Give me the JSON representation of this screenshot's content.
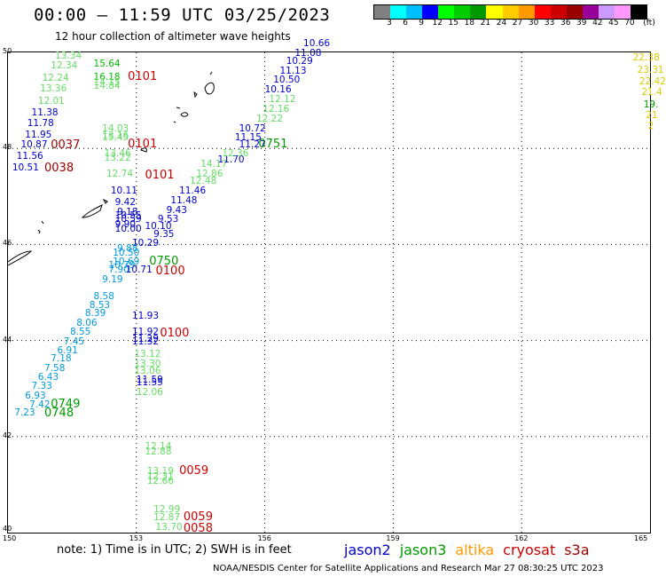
{
  "header": {
    "title": "00:00 — 11:59 UTC 03/25/2023",
    "subtitle": "12 hour collection of altimeter wave heights"
  },
  "colorbar": {
    "labels": [
      "3",
      "6",
      "9",
      "12",
      "15",
      "18",
      "21",
      "24",
      "27",
      "30",
      "33",
      "36",
      "39",
      "42",
      "45",
      "70",
      "(ft)"
    ],
    "colors": [
      "#808080",
      "#00ffff",
      "#00bfff",
      "#0000ff",
      "#00ff00",
      "#00cc00",
      "#009900",
      "#ffff00",
      "#ffcc00",
      "#ff9900",
      "#ff0000",
      "#cc0000",
      "#990000",
      "#990099",
      "#cc99ff",
      "#ff99ff",
      "#000000"
    ]
  },
  "axes": {
    "lat_labels": [
      "50",
      "48",
      "46",
      "44",
      "42",
      "40"
    ],
    "lon_labels": [
      "150",
      "153",
      "156",
      "159",
      "162",
      "165"
    ],
    "lat_range": [
      40,
      50
    ],
    "lon_range": [
      150,
      165
    ]
  },
  "annotations": [
    {
      "t": "13.34",
      "c": "#66dd66",
      "lon": 151.1,
      "lat": 49.9
    },
    {
      "t": "12.34",
      "c": "#66dd66",
      "lon": 151.0,
      "lat": 49.7
    },
    {
      "t": "15.64",
      "c": "#00bb00",
      "lon": 152.0,
      "lat": 49.75
    },
    {
      "t": "12.24",
      "c": "#66dd66",
      "lon": 150.8,
      "lat": 49.45
    },
    {
      "t": "16.18",
      "c": "#00bb00",
      "lon": 152.0,
      "lat": 49.47
    },
    {
      "t": "14.15",
      "c": "#66dd66",
      "lon": 152.0,
      "lat": 49.35
    },
    {
      "t": "14.84",
      "c": "#66dd66",
      "lon": 152.0,
      "lat": 49.27
    },
    {
      "t": "13.36",
      "c": "#66dd66",
      "lon": 150.75,
      "lat": 49.22
    },
    {
      "t": "12.01",
      "c": "#66dd66",
      "lon": 150.7,
      "lat": 48.97
    },
    {
      "t": "11.38",
      "c": "#0000cc",
      "lon": 150.55,
      "lat": 48.72
    },
    {
      "t": "11.78",
      "c": "#0000cc",
      "lon": 150.45,
      "lat": 48.5
    },
    {
      "t": "11.95",
      "c": "#0000cc",
      "lon": 150.4,
      "lat": 48.27
    },
    {
      "t": "14.03",
      "c": "#66dd66",
      "lon": 152.2,
      "lat": 48.4
    },
    {
      "t": "13.16",
      "c": "#66dd66",
      "lon": 152.2,
      "lat": 48.25
    },
    {
      "t": "15.45",
      "c": "#66dd66",
      "lon": 152.2,
      "lat": 48.2
    },
    {
      "t": "10.87",
      "c": "#0000cc",
      "lon": 150.3,
      "lat": 48.05
    },
    {
      "t": "11.56",
      "c": "#0000cc",
      "lon": 150.2,
      "lat": 47.82
    },
    {
      "t": "13.46",
      "c": "#66dd66",
      "lon": 152.25,
      "lat": 47.88
    },
    {
      "t": "13.22",
      "c": "#66dd66",
      "lon": 152.25,
      "lat": 47.78
    },
    {
      "t": "10.51",
      "c": "#0000cc",
      "lon": 150.1,
      "lat": 47.58
    },
    {
      "t": "12.74",
      "c": "#66dd66",
      "lon": 152.3,
      "lat": 47.45
    },
    {
      "t": "10.11",
      "c": "#0000cc",
      "lon": 152.4,
      "lat": 47.1
    },
    {
      "t": "9.42",
      "c": "#0000cc",
      "lon": 152.5,
      "lat": 46.85
    },
    {
      "t": "9.18",
      "c": "#0000cc",
      "lon": 152.55,
      "lat": 46.65
    },
    {
      "t": "10.55",
      "c": "#0000cc",
      "lon": 152.5,
      "lat": 46.58
    },
    {
      "t": "10.59",
      "c": "#0000cc",
      "lon": 152.5,
      "lat": 46.5
    },
    {
      "t": "9.90",
      "c": "#0000cc",
      "lon": 152.5,
      "lat": 46.4
    },
    {
      "t": "10.00",
      "c": "#0000cc",
      "lon": 152.5,
      "lat": 46.3
    },
    {
      "t": "10.10",
      "c": "#0000cc",
      "lon": 153.2,
      "lat": 46.35
    },
    {
      "t": "9.35",
      "c": "#0000cc",
      "lon": 153.4,
      "lat": 46.2
    },
    {
      "t": "10.29",
      "c": "#0000cc",
      "lon": 152.9,
      "lat": 46.0
    },
    {
      "t": "9.53",
      "c": "#0000cc",
      "lon": 153.5,
      "lat": 46.5
    },
    {
      "t": "9.43",
      "c": "#0000cc",
      "lon": 153.7,
      "lat": 46.7
    },
    {
      "t": "11.48",
      "c": "#0000cc",
      "lon": 153.8,
      "lat": 46.9
    },
    {
      "t": "11.46",
      "c": "#0000cc",
      "lon": 154.0,
      "lat": 47.1
    },
    {
      "t": "12.48",
      "c": "#66dd66",
      "lon": 154.25,
      "lat": 47.3
    },
    {
      "t": "12.86",
      "c": "#66dd66",
      "lon": 154.4,
      "lat": 47.45
    },
    {
      "t": "14.17",
      "c": "#66dd66",
      "lon": 154.5,
      "lat": 47.65
    },
    {
      "t": "11.70",
      "c": "#0000cc",
      "lon": 154.9,
      "lat": 47.75
    },
    {
      "t": "12.36",
      "c": "#66dd66",
      "lon": 155.0,
      "lat": 47.88
    },
    {
      "t": "11.27",
      "c": "#0000cc",
      "lon": 155.4,
      "lat": 48.05
    },
    {
      "t": "11.15",
      "c": "#0000cc",
      "lon": 155.3,
      "lat": 48.2
    },
    {
      "t": "10.72",
      "c": "#0000cc",
      "lon": 155.4,
      "lat": 48.4
    },
    {
      "t": "12.22",
      "c": "#66dd66",
      "lon": 155.8,
      "lat": 48.6
    },
    {
      "t": "12.16",
      "c": "#66dd66",
      "lon": 155.95,
      "lat": 48.8
    },
    {
      "t": "12.12",
      "c": "#66dd66",
      "lon": 156.1,
      "lat": 49.0
    },
    {
      "t": "10.16",
      "c": "#0000cc",
      "lon": 156.0,
      "lat": 49.2
    },
    {
      "t": "10.50",
      "c": "#0000cc",
      "lon": 156.2,
      "lat": 49.4
    },
    {
      "t": "11.13",
      "c": "#0000cc",
      "lon": 156.35,
      "lat": 49.6
    },
    {
      "t": "10.29",
      "c": "#0000cc",
      "lon": 156.5,
      "lat": 49.8
    },
    {
      "t": "11.08",
      "c": "#0000cc",
      "lon": 156.7,
      "lat": 49.97
    },
    {
      "t": "10.66",
      "c": "#0000cc",
      "lon": 156.9,
      "lat": 50.17
    },
    {
      "t": "9.88",
      "c": "#0099dd",
      "lon": 152.55,
      "lat": 45.9
    },
    {
      "t": "10.50",
      "c": "#0099dd",
      "lon": 152.45,
      "lat": 45.8
    },
    {
      "t": "10.69",
      "c": "#0099dd",
      "lon": 152.45,
      "lat": 45.62
    },
    {
      "t": "10.79",
      "c": "#0099dd",
      "lon": 152.35,
      "lat": 45.55
    },
    {
      "t": "7.90",
      "c": "#0099dd",
      "lon": 152.35,
      "lat": 45.45
    },
    {
      "t": "10.71",
      "c": "#0000cc",
      "lon": 152.75,
      "lat": 45.45
    },
    {
      "t": "9.19",
      "c": "#0099dd",
      "lon": 152.2,
      "lat": 45.25
    },
    {
      "t": "8.58",
      "c": "#0099dd",
      "lon": 152.0,
      "lat": 44.9
    },
    {
      "t": "8.53",
      "c": "#0099dd",
      "lon": 151.9,
      "lat": 44.72
    },
    {
      "t": "8.39",
      "c": "#0099dd",
      "lon": 151.8,
      "lat": 44.55
    },
    {
      "t": "8.06",
      "c": "#0099dd",
      "lon": 151.6,
      "lat": 44.35
    },
    {
      "t": "8.55",
      "c": "#0099dd",
      "lon": 151.45,
      "lat": 44.15
    },
    {
      "t": "7.45",
      "c": "#0099dd",
      "lon": 151.3,
      "lat": 43.95
    },
    {
      "t": "6.91",
      "c": "#0099dd",
      "lon": 151.15,
      "lat": 43.77
    },
    {
      "t": "7.18",
      "c": "#0099dd",
      "lon": 151.0,
      "lat": 43.6
    },
    {
      "t": "7.58",
      "c": "#0099dd",
      "lon": 150.85,
      "lat": 43.4
    },
    {
      "t": "6.43",
      "c": "#0099dd",
      "lon": 150.7,
      "lat": 43.22
    },
    {
      "t": "7.33",
      "c": "#0099dd",
      "lon": 150.55,
      "lat": 43.03
    },
    {
      "t": "6.93",
      "c": "#0099dd",
      "lon": 150.4,
      "lat": 42.83
    },
    {
      "t": "7.42",
      "c": "#0099dd",
      "lon": 150.5,
      "lat": 42.65
    },
    {
      "t": "7.23",
      "c": "#0099dd",
      "lon": 150.15,
      "lat": 42.47
    },
    {
      "t": "11.93",
      "c": "#0000cc",
      "lon": 152.9,
      "lat": 44.5
    },
    {
      "t": "11.92",
      "c": "#0000cc",
      "lon": 152.9,
      "lat": 44.15
    },
    {
      "t": "11.29",
      "c": "#0000cc",
      "lon": 152.9,
      "lat": 44.02
    },
    {
      "t": "11.32",
      "c": "#0000cc",
      "lon": 152.9,
      "lat": 43.95
    },
    {
      "t": "13.12",
      "c": "#66dd66",
      "lon": 152.95,
      "lat": 43.7
    },
    {
      "t": "13.30",
      "c": "#66dd66",
      "lon": 152.95,
      "lat": 43.5
    },
    {
      "t": "13.06",
      "c": "#66dd66",
      "lon": 152.95,
      "lat": 43.35
    },
    {
      "t": "11.59",
      "c": "#0000cc",
      "lon": 153.0,
      "lat": 43.17
    },
    {
      "t": "11.55",
      "c": "#0000cc",
      "lon": 153.0,
      "lat": 43.1
    },
    {
      "t": "12.06",
      "c": "#66dd66",
      "lon": 153.0,
      "lat": 42.9
    },
    {
      "t": "12.14",
      "c": "#66dd66",
      "lon": 153.2,
      "lat": 41.77
    },
    {
      "t": "12.88",
      "c": "#66dd66",
      "lon": 153.2,
      "lat": 41.67
    },
    {
      "t": "13.19",
      "c": "#66dd66",
      "lon": 153.25,
      "lat": 41.25
    },
    {
      "t": "12.31",
      "c": "#66dd66",
      "lon": 153.25,
      "lat": 41.15
    },
    {
      "t": "12.66",
      "c": "#66dd66",
      "lon": 153.25,
      "lat": 41.05
    },
    {
      "t": "12.99",
      "c": "#66dd66",
      "lon": 153.4,
      "lat": 40.47
    },
    {
      "t": "12.87",
      "c": "#66dd66",
      "lon": 153.4,
      "lat": 40.3
    },
    {
      "t": "13.70",
      "c": "#66dd66",
      "lon": 153.45,
      "lat": 40.1
    },
    {
      "t": "22.38",
      "c": "#ddcc00",
      "lon": 164.6,
      "lat": 49.87
    },
    {
      "t": "23.31",
      "c": "#ddcc00",
      "lon": 164.7,
      "lat": 49.62
    },
    {
      "t": "22.42",
      "c": "#ddcc00",
      "lon": 164.75,
      "lat": 49.38
    },
    {
      "t": "21.4",
      "c": "#ddcc00",
      "lon": 164.8,
      "lat": 49.15
    },
    {
      "t": "19.",
      "c": "#009900",
      "lon": 164.85,
      "lat": 48.9
    },
    {
      "t": "21",
      "c": "#ddcc00",
      "lon": 164.9,
      "lat": 48.67
    },
    {
      "t": "2",
      "c": "#ddcc00",
      "lon": 164.95,
      "lat": 48.45
    }
  ],
  "time_labels": [
    {
      "t": "0101",
      "c": "#cc0000",
      "lon": 152.8,
      "lat": 49.5
    },
    {
      "t": "0037",
      "c": "#990000",
      "lon": 151.0,
      "lat": 48.07
    },
    {
      "t": "0101",
      "c": "#cc0000",
      "lon": 152.8,
      "lat": 48.1
    },
    {
      "t": "0751",
      "c": "#009900",
      "lon": 155.85,
      "lat": 48.1
    },
    {
      "t": "0038",
      "c": "#990000",
      "lon": 150.85,
      "lat": 47.6
    },
    {
      "t": "0101",
      "c": "#cc0000",
      "lon": 153.2,
      "lat": 47.45
    },
    {
      "t": "0750",
      "c": "#009900",
      "lon": 153.3,
      "lat": 45.65
    },
    {
      "t": "0100",
      "c": "#cc0000",
      "lon": 153.45,
      "lat": 45.45
    },
    {
      "t": "0100",
      "c": "#cc0000",
      "lon": 153.55,
      "lat": 44.15
    },
    {
      "t": "0749",
      "c": "#009900",
      "lon": 151.0,
      "lat": 42.68
    },
    {
      "t": "0748",
      "c": "#009900",
      "lon": 150.85,
      "lat": 42.5
    },
    {
      "t": "0059",
      "c": "#cc0000",
      "lon": 154.0,
      "lat": 41.3
    },
    {
      "t": "0059",
      "c": "#cc0000",
      "lon": 154.1,
      "lat": 40.33
    },
    {
      "t": "0058",
      "c": "#cc0000",
      "lon": 154.1,
      "lat": 40.1
    }
  ],
  "footer": {
    "note": "note: 1) Time is in UTC; 2) SWH is in feet",
    "legend": [
      {
        "label": "jason2",
        "color": "#0000cc"
      },
      {
        "label": "jason3",
        "color": "#009900"
      },
      {
        "label": "altika",
        "color": "#ff9900"
      },
      {
        "label": "cryosat",
        "color": "#cc0000"
      },
      {
        "label": "s3a",
        "color": "#990000"
      }
    ],
    "credit": "NOAA/NESDIS Center for Satellite Applications and Research    Mar 27 08:30:25 UTC 2023"
  }
}
